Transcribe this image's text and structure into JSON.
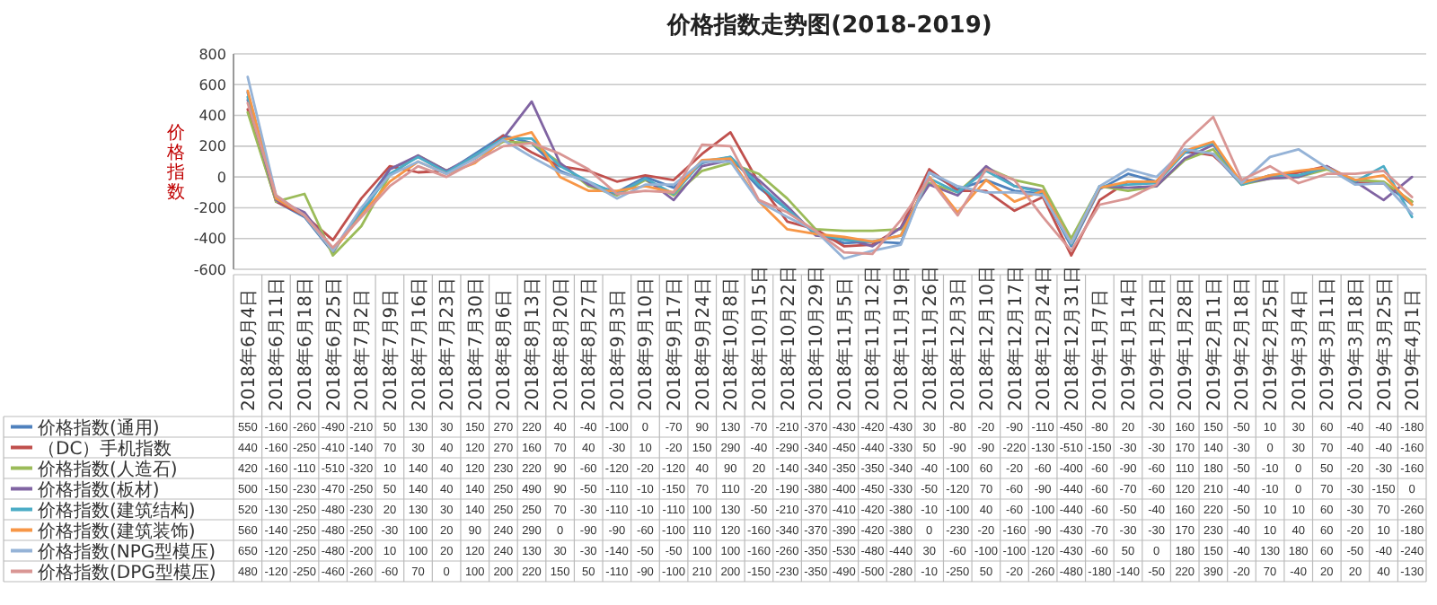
{
  "chart_data": {
    "type": "line",
    "title": "价格指数走势图(2018-2019)",
    "ylabel": "价格指数",
    "categories": [
      "2018年6月4日",
      "2018年6月11日",
      "2018年6月18日",
      "2018年6月25日",
      "2018年7月2日",
      "2018年7月9日",
      "2018年7月16日",
      "2018年7月23日",
      "2018年7月30日",
      "2018年8月6日",
      "2018年8月13日",
      "2018年8月20日",
      "2018年8月27日",
      "2018年9月3日",
      "2018年9月10日",
      "2018年9月17日",
      "2018年9月24日",
      "2018年10月8日",
      "2018年10月15日",
      "2018年10月22日",
      "2018年10月29日",
      "2018年11月5日",
      "2018年11月12日",
      "2018年11月19日",
      "2018年11月26日",
      "2018年12月3日",
      "2018年12月10日",
      "2018年12月17日",
      "2018年12月24日",
      "2018年12月31日",
      "2019年1月7日",
      "2019年1月14日",
      "2019年1月21日",
      "2019年1月28日",
      "2019年2月11日",
      "2019年2月18日",
      "2019年2月25日",
      "2019年3月4日",
      "2019年3月11日",
      "2019年3月18日",
      "2019年3月25日",
      "2019年4月1日"
    ],
    "series": [
      {
        "name": "价格指数(通用)",
        "color": "#4f81bd",
        "values": [
          550,
          -160,
          -260,
          -490,
          -210,
          50,
          130,
          30,
          150,
          270,
          220,
          40,
          -40,
          -100,
          0,
          -70,
          90,
          130,
          -70,
          -210,
          -370,
          -430,
          -420,
          -430,
          30,
          -80,
          -20,
          -90,
          -110,
          -450,
          -80,
          20,
          -30,
          160,
          150,
          -50,
          10,
          30,
          60,
          -40,
          -40,
          -180
        ]
      },
      {
        "name": "（DC）手机指数",
        "color": "#c0504d",
        "values": [
          440,
          -160,
          -250,
          -410,
          -140,
          70,
          30,
          40,
          120,
          270,
          160,
          70,
          40,
          -30,
          10,
          -20,
          150,
          290,
          -40,
          -290,
          -340,
          -450,
          -440,
          -330,
          50,
          -90,
          -90,
          -220,
          -130,
          -510,
          -150,
          -30,
          -30,
          170,
          140,
          -30,
          0,
          30,
          70,
          -40,
          -40,
          -160
        ]
      },
      {
        "name": "价格指数(人造石)",
        "color": "#9bbb59",
        "values": [
          420,
          -160,
          -110,
          -510,
          -320,
          10,
          140,
          40,
          120,
          230,
          220,
          90,
          -60,
          -120,
          -20,
          -120,
          40,
          90,
          20,
          -140,
          -340,
          -350,
          -350,
          -340,
          -40,
          -100,
          60,
          -20,
          -60,
          -400,
          -60,
          -90,
          -60,
          110,
          180,
          -50,
          -10,
          0,
          50,
          -20,
          -30,
          -160
        ]
      },
      {
        "name": "价格指数(板材)",
        "color": "#8064a2",
        "values": [
          500,
          -150,
          -230,
          -470,
          -250,
          50,
          140,
          40,
          140,
          250,
          490,
          90,
          -50,
          -110,
          -10,
          -150,
          70,
          110,
          -20,
          -190,
          -380,
          -400,
          -450,
          -330,
          -50,
          -120,
          70,
          -60,
          -90,
          -440,
          -60,
          -70,
          -60,
          120,
          210,
          -40,
          -10,
          0,
          70,
          -30,
          -150,
          0
        ]
      },
      {
        "name": "价格指数(建筑结构)",
        "color": "#4bacc6",
        "values": [
          520,
          -130,
          -250,
          -480,
          -230,
          20,
          130,
          30,
          140,
          250,
          250,
          70,
          -30,
          -110,
          -10,
          -110,
          100,
          130,
          -50,
          -210,
          -370,
          -410,
          -420,
          -380,
          -10,
          -100,
          40,
          -60,
          -100,
          -440,
          -60,
          -50,
          -40,
          160,
          220,
          -50,
          10,
          10,
          60,
          -30,
          70,
          -260
        ]
      },
      {
        "name": "价格指数(建筑装饰)",
        "color": "#f79646",
        "values": [
          560,
          -140,
          -250,
          -480,
          -250,
          -30,
          100,
          20,
          90,
          240,
          290,
          0,
          -90,
          -90,
          -60,
          -100,
          110,
          120,
          -160,
          -340,
          -370,
          -390,
          -420,
          -380,
          0,
          -230,
          -20,
          -160,
          -90,
          -430,
          -70,
          -30,
          -30,
          170,
          230,
          -40,
          10,
          40,
          60,
          -20,
          10,
          -180
        ]
      },
      {
        "name": "价格指数(NPG型模压)",
        "color": "#95b3d7",
        "values": [
          650,
          -120,
          -250,
          -480,
          -200,
          10,
          100,
          20,
          120,
          240,
          130,
          30,
          -30,
          -140,
          -50,
          -50,
          100,
          100,
          -160,
          -260,
          -350,
          -530,
          -480,
          -440,
          30,
          -60,
          -100,
          -100,
          -120,
          -430,
          -60,
          50,
          0,
          180,
          150,
          -40,
          130,
          180,
          60,
          -50,
          -40,
          -240
        ]
      },
      {
        "name": "价格指数(DPG型模压)",
        "color": "#d99694",
        "values": [
          480,
          -120,
          -250,
          -460,
          -260,
          -60,
          70,
          0,
          100,
          200,
          220,
          150,
          50,
          -110,
          -90,
          -100,
          210,
          200,
          -150,
          -230,
          -350,
          -490,
          -500,
          -280,
          -10,
          -250,
          50,
          -20,
          -260,
          -480,
          -180,
          -140,
          -50,
          220,
          390,
          -20,
          70,
          -40,
          20,
          20,
          40,
          -130
        ]
      }
    ],
    "ylim": [
      -600,
      800
    ],
    "yticks": [
      -600,
      -400,
      -200,
      0,
      200,
      400,
      600,
      800
    ],
    "grid": "y",
    "legend": "bottom",
    "data_labels": true,
    "marker": "none",
    "line_style": "solid"
  }
}
